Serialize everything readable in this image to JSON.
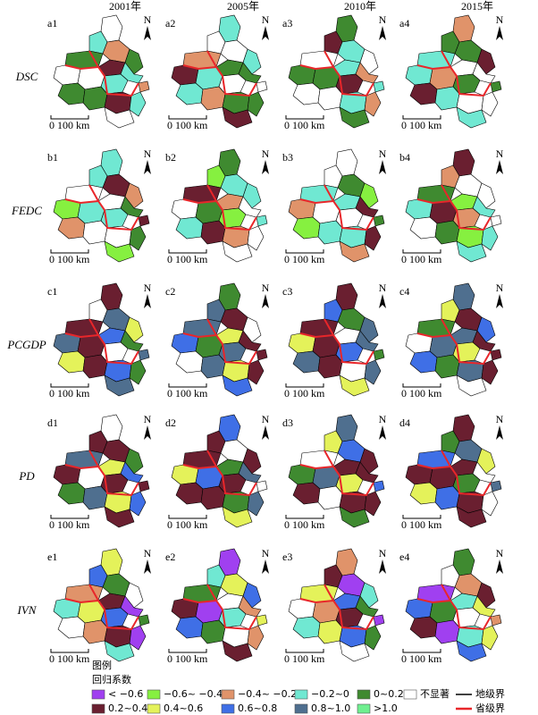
{
  "column_headers": [
    "2001年",
    "2005年",
    "2010年",
    "2015年"
  ],
  "row_labels": [
    "DSC",
    "FEDC",
    "PCGDP",
    "PD",
    "IVN"
  ],
  "panels": [
    [
      "a1",
      "a2",
      "a3",
      "a4"
    ],
    [
      "b1",
      "b2",
      "b3",
      "b4"
    ],
    [
      "c1",
      "c2",
      "c3",
      "c4"
    ],
    [
      "d1",
      "d2",
      "d3",
      "d4"
    ],
    [
      "e1",
      "e2",
      "e3",
      "e4"
    ]
  ],
  "north": "N",
  "scale_label": "0 100 km",
  "legend": {
    "title": "图例",
    "subtitle": "回归系数",
    "items": [
      {
        "label": "< −0.6",
        "color": "#a040f0"
      },
      {
        "label": "−0.6~ −0.4",
        "color": "#86f040"
      },
      {
        "label": "−0.4~ −0.2",
        "color": "#e0936a"
      },
      {
        "label": "−0.2~0",
        "color": "#70e8d2"
      },
      {
        "label": "0~0.2",
        "color": "#3f8a30"
      },
      {
        "label": "不显著",
        "color": "#ffffff"
      },
      {
        "label": "0.2~0.4",
        "color": "#6a1f30"
      },
      {
        "label": "0.4~0.6",
        "color": "#e4f25a"
      },
      {
        "label": "0.6~0.8",
        "color": "#3f6fe6"
      },
      {
        "label": "0.8~1.0",
        "color": "#4f6f8f"
      },
      {
        "label": ">1.0",
        "color": "#6fef8f"
      }
    ],
    "lines": [
      {
        "label": "地级界",
        "color": "#000000"
      },
      {
        "label": "省级界",
        "color": "#e8262a"
      }
    ]
  }
}
